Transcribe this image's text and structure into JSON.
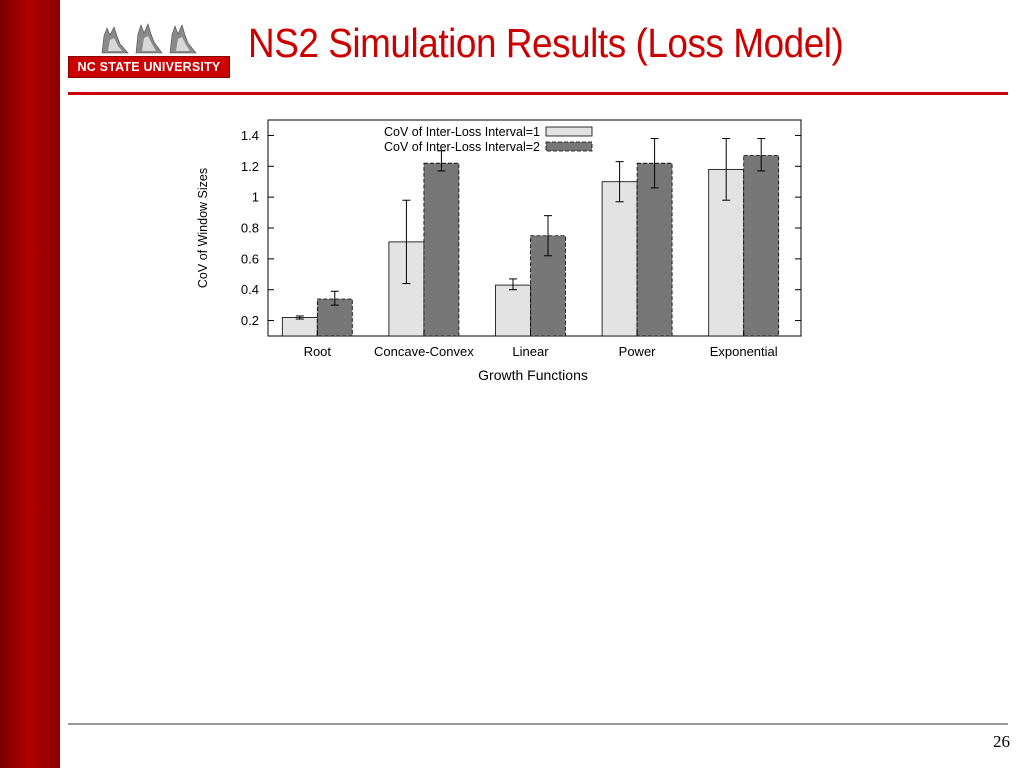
{
  "slide": {
    "title": "NS2 Simulation Results (Loss Model)",
    "page_number": "26",
    "logo": {
      "text": "NC STATE UNIVERSITY"
    }
  },
  "colors": {
    "sidebar": "#a00000",
    "title": "#cc0000",
    "series_1": "#e3e3e3",
    "series_2": "#777777"
  },
  "chart_data": {
    "type": "bar",
    "title": "",
    "xlabel": "Growth Functions",
    "ylabel": "CoV of Window Sizes",
    "ylim": [
      0.1,
      1.5
    ],
    "yticks": [
      0.2,
      0.4,
      0.6,
      0.8,
      1,
      1.2,
      1.4
    ],
    "ytick_labels": [
      "0.2",
      "0.4",
      "0.6",
      "0.8",
      "1",
      "1.2",
      "1.4"
    ],
    "categories": [
      "Root",
      "Concave-Convex",
      "Linear",
      "Power",
      "Exponential"
    ],
    "series": [
      {
        "name": "CoV of Inter-Loss Interval=1",
        "values": [
          0.22,
          0.71,
          0.43,
          1.1,
          1.18
        ],
        "err_low": [
          0.21,
          0.44,
          0.4,
          0.97,
          0.98
        ],
        "err_high": [
          0.23,
          0.98,
          0.47,
          1.23,
          1.38
        ]
      },
      {
        "name": "CoV of Inter-Loss Interval=2",
        "values": [
          0.34,
          1.22,
          0.75,
          1.22,
          1.27
        ],
        "err_low": [
          0.3,
          1.17,
          0.62,
          1.06,
          1.17
        ],
        "err_high": [
          0.39,
          1.3,
          0.88,
          1.38,
          1.38
        ]
      }
    ],
    "legend_position": "top",
    "grid": false
  }
}
